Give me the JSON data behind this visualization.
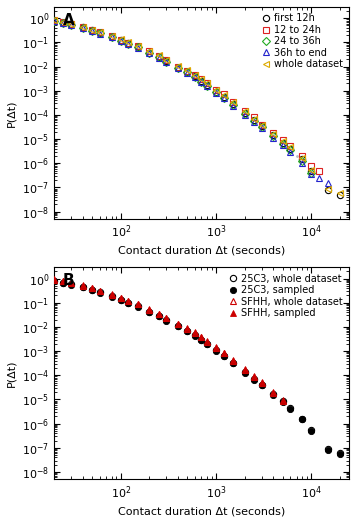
{
  "panel_A": {
    "label": "A",
    "xlabel": "Contact duration Δt (seconds)",
    "ylabel": "P(Δt)",
    "xlim": [
      20,
      25000
    ],
    "ylim": [
      5e-09,
      3
    ],
    "series": [
      {
        "name": "first 12h",
        "color": "black",
        "marker": "o",
        "filled": false,
        "x": [
          20,
          25,
          30,
          40,
          50,
          60,
          80,
          100,
          120,
          150,
          200,
          250,
          300,
          400,
          500,
          600,
          700,
          800,
          1000,
          1200,
          1500,
          2000,
          2500,
          3000,
          4000,
          5000,
          6000,
          8000,
          10000,
          15000,
          20000
        ],
        "y": [
          0.8,
          0.65,
          0.55,
          0.42,
          0.32,
          0.25,
          0.17,
          0.12,
          0.09,
          0.065,
          0.038,
          0.025,
          0.017,
          0.009,
          0.006,
          0.004,
          0.0025,
          0.0017,
          0.0009,
          0.00055,
          0.00028,
          0.00012,
          6e-05,
          3.5e-05,
          1.5e-05,
          7e-06,
          4e-06,
          1.5e-06,
          5e-07,
          8e-08,
          5e-08
        ]
      },
      {
        "name": "12 to 24h",
        "color": "#dd2222",
        "marker": "s",
        "filled": false,
        "x": [
          20,
          25,
          30,
          40,
          50,
          60,
          80,
          100,
          120,
          150,
          200,
          250,
          300,
          400,
          500,
          600,
          700,
          800,
          1000,
          1200,
          1500,
          2000,
          2500,
          3000,
          4000,
          5000,
          6000,
          8000,
          10000,
          12000
        ],
        "y": [
          0.82,
          0.67,
          0.58,
          0.44,
          0.33,
          0.26,
          0.18,
          0.13,
          0.095,
          0.068,
          0.042,
          0.028,
          0.018,
          0.01,
          0.0065,
          0.0043,
          0.003,
          0.002,
          0.0011,
          0.0007,
          0.00035,
          0.00015,
          8e-05,
          4e-05,
          1.8e-05,
          9e-06,
          5e-06,
          2e-06,
          8e-07,
          5e-07
        ]
      },
      {
        "name": "24 to 36h",
        "color": "#22aa22",
        "marker": "D",
        "filled": false,
        "x": [
          20,
          25,
          30,
          40,
          50,
          60,
          80,
          100,
          120,
          150,
          200,
          250,
          300,
          400,
          500,
          600,
          700,
          800,
          1000,
          1200,
          1500,
          2000,
          2500,
          3000,
          4000,
          5000,
          6000,
          8000,
          10000
        ],
        "y": [
          0.79,
          0.64,
          0.54,
          0.41,
          0.31,
          0.24,
          0.165,
          0.118,
          0.088,
          0.063,
          0.037,
          0.024,
          0.016,
          0.0088,
          0.0058,
          0.0038,
          0.0024,
          0.0016,
          0.00085,
          0.0005,
          0.00026,
          0.00011,
          5.5e-05,
          3.2e-05,
          1.3e-05,
          6.5e-06,
          3.5e-06,
          1.2e-06,
          4e-07
        ]
      },
      {
        "name": "36h to end",
        "color": "#2222cc",
        "marker": "^",
        "filled": false,
        "x": [
          20,
          25,
          30,
          40,
          50,
          60,
          80,
          100,
          120,
          150,
          200,
          250,
          300,
          400,
          500,
          600,
          700,
          800,
          1000,
          1200,
          1500,
          2000,
          2500,
          3000,
          4000,
          5000,
          6000,
          8000,
          10000,
          12000,
          15000
        ],
        "y": [
          0.77,
          0.63,
          0.52,
          0.4,
          0.3,
          0.23,
          0.16,
          0.115,
          0.085,
          0.06,
          0.036,
          0.023,
          0.015,
          0.0085,
          0.0055,
          0.0036,
          0.0023,
          0.0015,
          0.0008,
          0.00048,
          0.00024,
          0.0001,
          5e-05,
          2.8e-05,
          1.1e-05,
          5.5e-06,
          3e-06,
          1e-06,
          3.5e-07,
          2.5e-07,
          1.5e-07
        ]
      },
      {
        "name": "whole dataset",
        "color": "#ddaa00",
        "marker": "<",
        "filled": false,
        "x": [
          20,
          25,
          30,
          40,
          50,
          60,
          80,
          100,
          120,
          150,
          200,
          250,
          300,
          400,
          500,
          600,
          700,
          800,
          1000,
          1200,
          1500,
          2000,
          2500,
          3000,
          4000,
          5000,
          6000,
          8000,
          10000,
          15000,
          20000
        ],
        "y": [
          0.83,
          0.68,
          0.58,
          0.45,
          0.34,
          0.27,
          0.185,
          0.133,
          0.1,
          0.072,
          0.043,
          0.029,
          0.019,
          0.011,
          0.007,
          0.0046,
          0.003,
          0.002,
          0.0011,
          0.00065,
          0.00033,
          0.00014,
          7e-05,
          4e-05,
          1.7e-05,
          8.5e-06,
          4.5e-06,
          1.6e-06,
          5.5e-07,
          9e-08,
          6e-08
        ]
      }
    ],
    "scatter_dots": {
      "color": "#bbbbbb",
      "x": [
        300,
        400,
        500,
        600,
        700,
        800,
        1000,
        1200,
        1500,
        2000,
        3000,
        4000,
        5000,
        7000,
        10000
      ],
      "y": [
        0.019,
        0.011,
        0.007,
        0.0046,
        0.003,
        0.002,
        0.001,
        0.0006,
        0.0003,
        0.00012,
        3.8e-05,
        1.5e-05,
        7.5e-06,
        2e-06,
        4e-07
      ]
    }
  },
  "panel_B": {
    "label": "B",
    "xlabel": "Contact duration Δt (seconds)",
    "ylabel": "P(Δt)",
    "xlim": [
      20,
      25000
    ],
    "ylim": [
      5e-09,
      3
    ],
    "series": [
      {
        "name": "25C3, whole dataset",
        "color": "black",
        "marker": "o",
        "filled": false,
        "x": [
          20,
          25,
          30,
          40,
          50,
          60,
          80,
          100,
          120,
          150,
          200,
          250,
          300,
          400,
          500,
          600,
          700,
          800,
          1000,
          1200,
          1500,
          2000,
          2500,
          3000,
          4000,
          5000,
          6000,
          8000,
          10000,
          15000,
          20000
        ],
        "y": [
          0.83,
          0.68,
          0.58,
          0.45,
          0.34,
          0.27,
          0.185,
          0.133,
          0.1,
          0.072,
          0.043,
          0.029,
          0.019,
          0.011,
          0.007,
          0.0046,
          0.003,
          0.002,
          0.0011,
          0.00065,
          0.00033,
          0.00014,
          7e-05,
          4e-05,
          1.7e-05,
          8.5e-06,
          4.5e-06,
          1.6e-06,
          5.5e-07,
          9e-08,
          6e-08
        ]
      },
      {
        "name": "25C3, sampled",
        "color": "black",
        "marker": "o",
        "filled": true,
        "x": [
          20,
          25,
          30,
          40,
          50,
          60,
          80,
          100,
          120,
          150,
          200,
          250,
          300,
          400,
          500,
          600,
          700,
          800,
          1000,
          1200,
          1500,
          2000,
          2500,
          3000,
          4000,
          5000,
          6000,
          8000,
          10000,
          15000,
          20000
        ],
        "y": [
          0.81,
          0.66,
          0.56,
          0.43,
          0.33,
          0.26,
          0.18,
          0.13,
          0.097,
          0.07,
          0.042,
          0.028,
          0.018,
          0.0105,
          0.0068,
          0.0044,
          0.0029,
          0.0019,
          0.00105,
          0.00062,
          0.00031,
          0.00013,
          6.5e-05,
          3.8e-05,
          1.6e-05,
          8e-06,
          4.2e-06,
          1.5e-06,
          5e-07,
          8.5e-08,
          5.5e-08
        ]
      },
      {
        "name": "SFHH, whole dataset",
        "color": "#cc0000",
        "marker": "^",
        "filled": false,
        "x": [
          20,
          25,
          30,
          40,
          50,
          60,
          80,
          100,
          120,
          150,
          200,
          250,
          300,
          400,
          500,
          600,
          700,
          800,
          1000,
          1200,
          1500,
          2000,
          2500,
          3000,
          4000,
          5000
        ],
        "y": [
          0.9,
          0.76,
          0.65,
          0.51,
          0.39,
          0.31,
          0.215,
          0.155,
          0.117,
          0.085,
          0.051,
          0.034,
          0.023,
          0.013,
          0.0085,
          0.0056,
          0.0037,
          0.0025,
          0.00135,
          0.0008,
          0.0004,
          0.00017,
          8.5e-05,
          4.8e-05,
          1.9e-05,
          9e-06
        ]
      },
      {
        "name": "SFHH, sampled",
        "color": "#cc0000",
        "marker": "^",
        "filled": true,
        "x": [
          20,
          25,
          30,
          40,
          50,
          60,
          80,
          100,
          120,
          150,
          200,
          250,
          300,
          400,
          500,
          600,
          700,
          800,
          1000,
          1200,
          1500,
          2000,
          2500,
          3000,
          4000,
          5000
        ],
        "y": [
          0.92,
          0.78,
          0.67,
          0.53,
          0.41,
          0.32,
          0.225,
          0.162,
          0.122,
          0.088,
          0.053,
          0.036,
          0.024,
          0.0135,
          0.009,
          0.006,
          0.004,
          0.0027,
          0.00145,
          0.00085,
          0.00043,
          0.00018,
          9e-05,
          5.1e-05,
          2e-05,
          9.5e-06
        ]
      }
    ]
  },
  "figure_bg": "white",
  "font_size": 8,
  "marker_size": 4.5
}
